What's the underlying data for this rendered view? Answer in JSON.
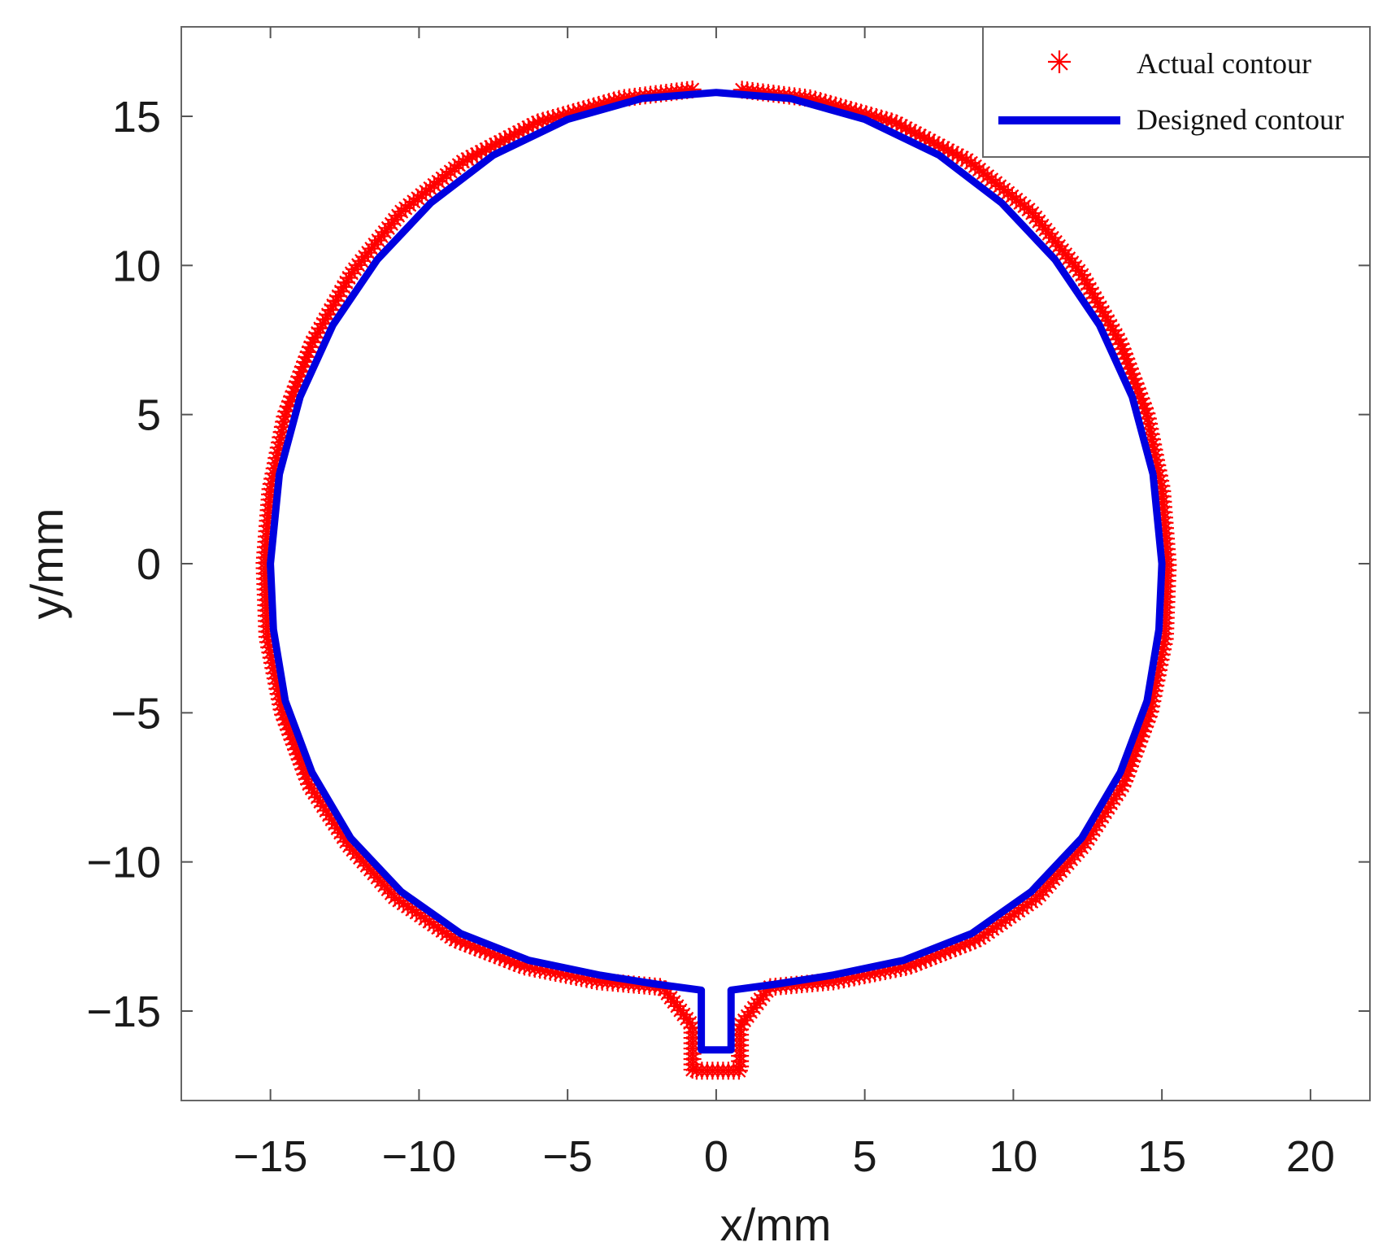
{
  "chart_data": {
    "type": "scatter",
    "title": "",
    "xlabel": "x/mm",
    "ylabel": "y/mm",
    "xlim": [
      -18,
      22
    ],
    "ylim": [
      -18,
      18
    ],
    "x_ticks": [
      -15,
      -10,
      -5,
      0,
      5,
      10,
      15,
      20
    ],
    "y_ticks": [
      -15,
      -10,
      -5,
      0,
      5,
      10,
      15
    ],
    "x_tick_labels": [
      "−15",
      "−10",
      "−5",
      "0",
      "5",
      "10",
      "15",
      "20"
    ],
    "y_tick_labels": [
      "−15",
      "−10",
      "−5",
      "0",
      "5",
      "10",
      "15"
    ],
    "grid": false,
    "legend_position": "top-right",
    "series": [
      {
        "name": "Actual contour",
        "kind": "markers",
        "marker": "asterisk",
        "color": "#ff0000",
        "x": [
          -0.8,
          -3.2,
          -6.0,
          -8.5,
          -10.6,
          -12.3,
          -13.6,
          -14.5,
          -15.0,
          -15.2,
          -15.1,
          -14.6,
          -13.7,
          -12.4,
          -10.8,
          -8.8,
          -6.5,
          -4.0,
          -1.8,
          -0.8,
          -0.8,
          0.0,
          0.8,
          0.8,
          1.8,
          4.0,
          6.5,
          8.8,
          10.8,
          12.4,
          13.7,
          14.6,
          15.1,
          15.2,
          15.0,
          14.5,
          13.6,
          12.3,
          10.6,
          8.5,
          6.0,
          3.2,
          0.8
        ],
        "y": [
          15.9,
          15.6,
          14.8,
          13.5,
          11.8,
          9.7,
          7.4,
          5.0,
          2.5,
          0.0,
          -2.5,
          -5.0,
          -7.4,
          -9.4,
          -11.2,
          -12.6,
          -13.5,
          -14.0,
          -14.2,
          -15.5,
          -17.0,
          -17.0,
          -17.0,
          -15.5,
          -14.2,
          -14.0,
          -13.5,
          -12.6,
          -11.2,
          -9.4,
          -7.4,
          -5.0,
          -2.5,
          0.0,
          2.5,
          5.0,
          7.4,
          9.7,
          11.8,
          13.5,
          14.8,
          15.6,
          15.9
        ]
      },
      {
        "name": "Designed contour",
        "kind": "line",
        "color": "#0000e0",
        "x": [
          0.0,
          2.5,
          5.0,
          7.5,
          9.6,
          11.4,
          12.9,
          14.0,
          14.7,
          15.0,
          14.9,
          14.5,
          13.6,
          12.3,
          10.6,
          8.6,
          6.3,
          3.9,
          2.0,
          0.5,
          0.5,
          -0.5,
          -0.5,
          -2.0,
          -3.9,
          -6.3,
          -8.6,
          -10.6,
          -12.3,
          -13.6,
          -14.5,
          -14.9,
          -15.0,
          -14.7,
          -14.0,
          -12.9,
          -11.4,
          -9.6,
          -7.5,
          -5.0,
          -2.5,
          0.0
        ],
        "y": [
          15.8,
          15.6,
          14.9,
          13.7,
          12.1,
          10.2,
          8.0,
          5.6,
          3.0,
          0.0,
          -2.2,
          -4.6,
          -7.0,
          -9.2,
          -11.0,
          -12.4,
          -13.3,
          -13.8,
          -14.1,
          -14.3,
          -16.3,
          -16.3,
          -14.3,
          -14.1,
          -13.8,
          -13.3,
          -12.4,
          -11.0,
          -9.2,
          -7.0,
          -4.6,
          -2.2,
          0.0,
          3.0,
          5.6,
          8.0,
          10.2,
          12.1,
          13.7,
          14.9,
          15.6,
          15.8
        ]
      }
    ]
  }
}
